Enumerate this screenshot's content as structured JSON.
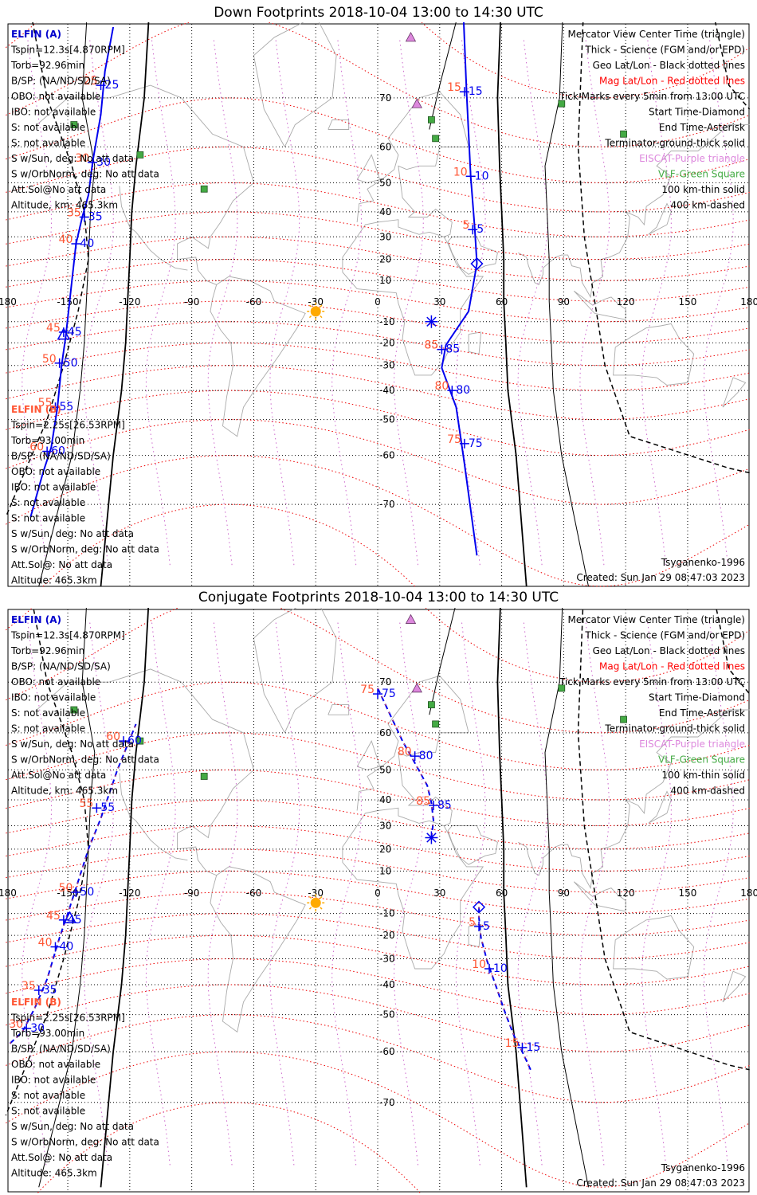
{
  "panels": [
    {
      "id": "down",
      "title": "Down Footprints 2018-10-04 13:00 to 14:30 UTC",
      "elfin_a": {
        "name": "ELFIN (A)",
        "lines": [
          "Tspin=12.3s[4.870RPM]",
          "Torb=92.96min",
          "B/SP: (NA/ND/SD/SA)",
          "OBO: not available",
          "IBO: not available",
          "S: not available",
          "S: not available",
          "S w/Sun, deg: No att data",
          "S w/OrbNorm, deg: No att data",
          "Att.Sol@No att data",
          "Altitude, km: 465.3km"
        ]
      },
      "elfin_b": {
        "name": "ELFIN (B)",
        "lines": [
          "Tspin=2.25s[26.53RPM]",
          "Torb=93.00min",
          "B/SP: (NA/ND/SD/SA)",
          "OBO: not available",
          "IBO: not available",
          "S: not available",
          "S: not available",
          "S w/Sun, deg: No att data",
          "S w/OrbNorm, deg: No att data",
          "Att.Sol@: No att data",
          "Altitude: 465.3km"
        ]
      },
      "legend": [
        {
          "text": "Mercator View Center Time (triangle)",
          "color": "#000000"
        },
        {
          "text": "Thick - Science (FGM and/or EPD)",
          "color": "#000000"
        },
        {
          "text": "Geo Lat/Lon - Black dotted lines",
          "color": "#000000"
        },
        {
          "text": "Mag Lat/Lon - Red dotted lines",
          "color": "#ff0000"
        },
        {
          "text": "Tick Marks every 5min from 13:00 UTC",
          "color": "#000000"
        },
        {
          "text": "Start Time-Diamond",
          "color": "#000000"
        },
        {
          "text": "End Time-Asterisk",
          "color": "#000000"
        },
        {
          "text": "Terminator-ground-thick solid",
          "color": "#000000"
        },
        {
          "text": "EISCAT-Purple triangle",
          "color": "#dd88dd"
        },
        {
          "text": "VLF-Green Square",
          "color": "#44aa44"
        },
        {
          "text": "100 km-thin solid",
          "color": "#000000"
        },
        {
          "text": "400 km-dashed",
          "color": "#000000"
        }
      ],
      "model": "Tsyganenko-1996",
      "created": "Created: Sun Jan 29 08:47:03 2023",
      "track_a": [
        [
          -128,
          79
        ],
        [
          -132,
          74
        ],
        [
          -134,
          67
        ],
        [
          -138,
          56
        ],
        [
          -140,
          46
        ],
        [
          -143,
          38
        ],
        [
          -146,
          27
        ],
        [
          -151,
          -17
        ],
        [
          -153,
          -30
        ],
        [
          -155,
          -46
        ],
        [
          -158,
          -58
        ],
        [
          -162,
          -64
        ],
        [
          -168,
          -72
        ]
      ],
      "track_b": [
        [
          41,
          82
        ],
        [
          43,
          71
        ],
        [
          45,
          52
        ],
        [
          47,
          33
        ],
        [
          48,
          18
        ],
        [
          44,
          -5
        ],
        [
          33,
          -21
        ],
        [
          31,
          -31
        ],
        [
          38,
          -46
        ],
        [
          42,
          -62
        ],
        [
          48,
          -77
        ]
      ],
      "ticks_a": [
        {
          "lon": -134,
          "lat": 72,
          "blue": "25",
          "red": "25"
        },
        {
          "lon": -138,
          "lat": 56,
          "blue": "30",
          "red": "30"
        },
        {
          "lon": -142,
          "lat": 38,
          "blue": "35",
          "red": "35"
        },
        {
          "lon": -146,
          "lat": 27,
          "blue": "40",
          "red": "40"
        },
        {
          "lon": -152,
          "lat": -15,
          "blue": "45",
          "red": "45"
        },
        {
          "lon": -154,
          "lat": -29,
          "blue": "50",
          "red": "50"
        },
        {
          "lon": -156,
          "lat": -46,
          "blue": "55",
          "red": "55"
        },
        {
          "lon": -160,
          "lat": -59,
          "blue": "60",
          "red": "60"
        }
      ],
      "ticks_b": [
        {
          "lon": 42,
          "lat": 71,
          "blue": "15",
          "red": "15"
        },
        {
          "lon": 45,
          "lat": 52,
          "blue": "10",
          "red": "10"
        },
        {
          "lon": 46,
          "lat": 33,
          "blue": "5",
          "red": "5"
        },
        {
          "lon": 31,
          "lat": -23,
          "blue": "85",
          "red": "85"
        },
        {
          "lon": 36,
          "lat": -40,
          "blue": "80",
          "red": "80"
        },
        {
          "lon": 42,
          "lat": -57,
          "blue": "75",
          "red": "75"
        }
      ],
      "start_marker": [
        48,
        18
      ],
      "end_marker": [
        26,
        -10
      ],
      "center_triangle": [
        -152,
        -16
      ]
    },
    {
      "id": "conj",
      "title": "Conjugate Footprints 2018-10-04 13:00 to 14:30 UTC",
      "elfin_a": {
        "name": "ELFIN (A)",
        "lines": [
          "Tspin=12.3s[4.870RPM]",
          "Torb=92.96min",
          "B/SP: (NA/ND/SD/SA)",
          "OBO: not available",
          "IBO: not available",
          "S: not available",
          "S: not available",
          "S w/Sun, deg: No att data",
          "S w/OrbNorm, deg: No att data",
          "Att.Sol@No att data",
          "Altitude, km: 465.3km"
        ]
      },
      "elfin_b": {
        "name": "ELFIN (B)",
        "lines": [
          "Tspin=2.25s[26.53RPM]",
          "Torb=93.00min",
          "B/SP: (NA/ND/SD/SA)",
          "OBO: not available",
          "IBO: not available",
          "S: not available",
          "S: not available",
          "S w/Sun, deg: No att data",
          "S w/OrbNorm, deg: No att data",
          "Att.Sol@: No att data",
          "Altitude: 465.3km"
        ]
      },
      "legend": [
        {
          "text": "Mercator View Center Time (triangle)",
          "color": "#000000"
        },
        {
          "text": "Thick - Science (FGM and/or EPD)",
          "color": "#000000"
        },
        {
          "text": "Geo Lat/Lon - Black dotted lines",
          "color": "#000000"
        },
        {
          "text": "Mag Lat/Lon - Red dotted lines",
          "color": "#ff0000"
        },
        {
          "text": "Tick Marks every 5min from 13:00 UTC",
          "color": "#000000"
        },
        {
          "text": "Start Time-Diamond",
          "color": "#000000"
        },
        {
          "text": "End Time-Asterisk",
          "color": "#000000"
        },
        {
          "text": "Terminator-ground-thick solid",
          "color": "#000000"
        },
        {
          "text": "EISCAT-Purple triangle",
          "color": "#dd88dd"
        },
        {
          "text": "VLF-Green Square",
          "color": "#44aa44"
        },
        {
          "text": "100 km-thin solid",
          "color": "#000000"
        },
        {
          "text": "400 km-dashed",
          "color": "#000000"
        }
      ],
      "model": "Tsyganenko-1996",
      "created": "Created: Sun Jan 29 08:47:03 2023",
      "track_a": [
        [
          -178,
          -58
        ],
        [
          -172,
          -55
        ],
        [
          -166,
          -48
        ],
        [
          -160,
          -38
        ],
        [
          -154,
          -21
        ],
        [
          -150,
          -10
        ],
        [
          -146,
          2
        ],
        [
          -140,
          20
        ],
        [
          -134,
          33
        ],
        [
          -126,
          50
        ],
        [
          -117,
          62
        ]
      ],
      "track_b": [
        [
          0,
          69
        ],
        [
          6,
          64
        ],
        [
          12,
          58
        ],
        [
          18,
          52
        ],
        [
          24,
          45
        ],
        [
          26,
          39
        ],
        [
          27,
          32
        ],
        [
          26,
          25
        ]
      ],
      "track_c": [
        [
          49,
          -7
        ],
        [
          49,
          -12
        ],
        [
          50,
          -21
        ],
        [
          53,
          -31
        ],
        [
          57,
          -40
        ],
        [
          62,
          -50
        ],
        [
          66,
          -56
        ],
        [
          70,
          -60
        ],
        [
          74,
          -64
        ]
      ],
      "ticks_a": [
        {
          "lon": -170,
          "lat": -54,
          "blue": "30",
          "red": "30"
        },
        {
          "lon": -164,
          "lat": -42,
          "blue": "35",
          "red": "35"
        },
        {
          "lon": -156,
          "lat": -25,
          "blue": "40",
          "red": "40"
        },
        {
          "lon": -152,
          "lat": -13,
          "blue": "45",
          "red": "45"
        },
        {
          "lon": -146,
          "lat": 0,
          "blue": "50",
          "red": "50"
        },
        {
          "lon": -136,
          "lat": 37,
          "blue": "55",
          "red": "55"
        },
        {
          "lon": -123,
          "lat": 58,
          "blue": "60",
          "red": "60"
        }
      ],
      "ticks_b": [
        {
          "lon": 0,
          "lat": 68,
          "blue": "75",
          "red": "75"
        },
        {
          "lon": 18,
          "lat": 54,
          "blue": "80",
          "red": "80"
        },
        {
          "lon": 27,
          "lat": 38,
          "blue": "85",
          "red": "85"
        }
      ],
      "ticks_c": [
        {
          "lon": 49,
          "lat": -16,
          "blue": "5",
          "red": "5"
        },
        {
          "lon": 54,
          "lat": -34,
          "blue": "10",
          "red": "10"
        },
        {
          "lon": 70,
          "lat": -59,
          "blue": "15",
          "red": "15"
        }
      ],
      "start_marker": [
        49,
        -7
      ],
      "end_marker": [
        26,
        25
      ],
      "center_triangle": [
        -149,
        -12
      ]
    }
  ],
  "axes": {
    "lon_ticks": [
      "-180",
      "-150",
      "-120",
      "-90",
      "-60",
      "-30",
      "0",
      "30",
      "60",
      "90",
      "120",
      "150",
      "180"
    ],
    "lat_ticks": [
      "70",
      "60",
      "50",
      "40",
      "30",
      "20",
      "10",
      "-10",
      "-20",
      "-30",
      "-40",
      "-50",
      "-60",
      "-70"
    ]
  },
  "sun": [
    -30,
    -5
  ],
  "eiscat": [
    [
      16,
      78
    ],
    [
      19,
      69
    ]
  ],
  "vlf": [
    [
      -147,
      65
    ],
    [
      -115,
      58
    ],
    [
      -84,
      48
    ],
    [
      26,
      66
    ],
    [
      28,
      62
    ],
    [
      89,
      69
    ],
    [
      119,
      63
    ]
  ],
  "colors": {
    "track": "#0000ee",
    "tick_blue": "#0000ee",
    "tick_red": "#ff5533",
    "maggrid": "#ee0000",
    "geogrid": "#000000",
    "mlon": "#cc66cc",
    "coast": "#aaaaaa",
    "sun": "#ffaa00",
    "eiscat": "#dd88dd",
    "vlf": "#44aa44",
    "elfin_a": "#0000cc",
    "elfin_b": "#ff5533"
  }
}
